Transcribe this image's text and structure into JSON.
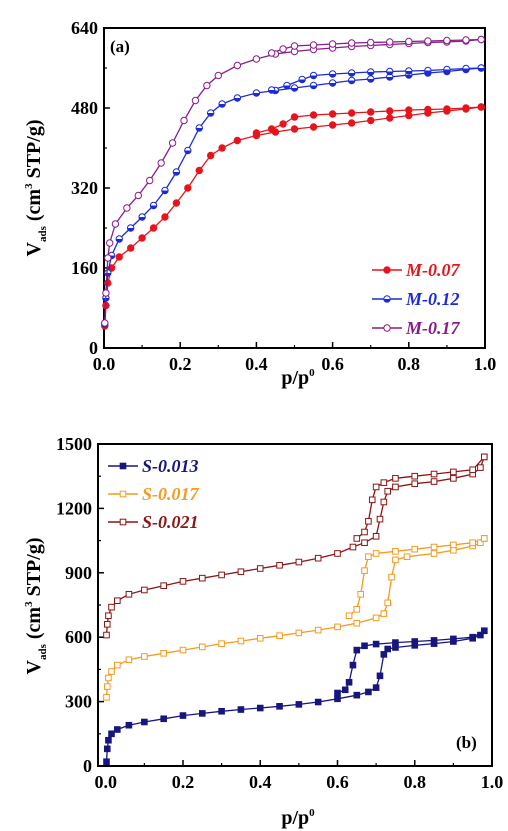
{
  "chart_data": [
    {
      "type": "line",
      "panel_label": "(a)",
      "xlabel": {
        "main": "p/p",
        "sup": "0"
      },
      "ylabel": {
        "v": "V",
        "ads": "ads",
        "pre": " (cm",
        "sup": "3",
        "post": " STP/g)"
      },
      "xlim": [
        0,
        1.0
      ],
      "ylim": [
        0,
        640
      ],
      "xticks": [
        "0.0",
        "0.2",
        "0.4",
        "0.6",
        "0.8",
        "1.0"
      ],
      "yticks": [
        "0",
        "160",
        "320",
        "480",
        "640"
      ],
      "legend_position": "lower-right",
      "series": [
        {
          "name": "M-0.07",
          "color": "#e8141c",
          "marker": "filled-circle",
          "adsorption": [
            [
              0.002,
              44
            ],
            [
              0.005,
              85
            ],
            [
              0.01,
              130
            ],
            [
              0.02,
              160
            ],
            [
              0.04,
              182
            ],
            [
              0.07,
              200
            ],
            [
              0.1,
              220
            ],
            [
              0.13,
              240
            ],
            [
              0.16,
              262
            ],
            [
              0.19,
              290
            ],
            [
              0.22,
              320
            ],
            [
              0.25,
              355
            ],
            [
              0.28,
              385
            ],
            [
              0.31,
              400
            ],
            [
              0.35,
              415
            ],
            [
              0.4,
              425
            ],
            [
              0.45,
              432
            ],
            [
              0.5,
              438
            ],
            [
              0.55,
              442
            ],
            [
              0.6,
              446
            ],
            [
              0.65,
              450
            ],
            [
              0.7,
              455
            ],
            [
              0.75,
              460
            ],
            [
              0.8,
              465
            ],
            [
              0.85,
              470
            ],
            [
              0.9,
              474
            ],
            [
              0.95,
              478
            ],
            [
              0.99,
              482
            ]
          ],
          "desorption": [
            [
              0.99,
              482
            ],
            [
              0.95,
              480
            ],
            [
              0.9,
              478
            ],
            [
              0.85,
              477
            ],
            [
              0.8,
              476
            ],
            [
              0.75,
              474
            ],
            [
              0.7,
              472
            ],
            [
              0.65,
              470
            ],
            [
              0.6,
              468
            ],
            [
              0.55,
              466
            ],
            [
              0.5,
              462
            ],
            [
              0.47,
              448
            ],
            [
              0.44,
              438
            ],
            [
              0.4,
              430
            ]
          ]
        },
        {
          "name": "M-0.12",
          "color": "#1c2bd6",
          "marker": "half-filled-circle",
          "adsorption": [
            [
              0.002,
              48
            ],
            [
              0.005,
              100
            ],
            [
              0.01,
              150
            ],
            [
              0.02,
              185
            ],
            [
              0.04,
              218
            ],
            [
              0.07,
              240
            ],
            [
              0.1,
              262
            ],
            [
              0.13,
              285
            ],
            [
              0.16,
              315
            ],
            [
              0.19,
              352
            ],
            [
              0.22,
              395
            ],
            [
              0.25,
              440
            ],
            [
              0.28,
              470
            ],
            [
              0.31,
              488
            ],
            [
              0.35,
              500
            ],
            [
              0.4,
              510
            ],
            [
              0.45,
              515
            ],
            [
              0.5,
              520
            ],
            [
              0.55,
              525
            ],
            [
              0.6,
              530
            ],
            [
              0.65,
              535
            ],
            [
              0.7,
              538
            ],
            [
              0.75,
              542
            ],
            [
              0.8,
              546
            ],
            [
              0.85,
              550
            ],
            [
              0.9,
              553
            ],
            [
              0.95,
              557
            ],
            [
              0.99,
              560
            ]
          ],
          "desorption": [
            [
              0.99,
              560
            ],
            [
              0.95,
              559
            ],
            [
              0.9,
              557
            ],
            [
              0.85,
              555
            ],
            [
              0.8,
              554
            ],
            [
              0.75,
              553
            ],
            [
              0.7,
              552
            ],
            [
              0.65,
              550
            ],
            [
              0.6,
              548
            ],
            [
              0.55,
              545
            ],
            [
              0.52,
              537
            ],
            [
              0.48,
              525
            ],
            [
              0.44,
              516
            ]
          ]
        },
        {
          "name": "M-0.17",
          "color": "#8b1a8b",
          "marker": "open-circle",
          "adsorption": [
            [
              0.002,
              50
            ],
            [
              0.005,
              110
            ],
            [
              0.01,
              180
            ],
            [
              0.015,
              210
            ],
            [
              0.03,
              248
            ],
            [
              0.06,
              280
            ],
            [
              0.09,
              305
            ],
            [
              0.12,
              335
            ],
            [
              0.15,
              370
            ],
            [
              0.18,
              410
            ],
            [
              0.21,
              455
            ],
            [
              0.24,
              495
            ],
            [
              0.27,
              525
            ],
            [
              0.3,
              545
            ],
            [
              0.35,
              565
            ],
            [
              0.4,
              578
            ],
            [
              0.45,
              588
            ],
            [
              0.5,
              593
            ],
            [
              0.55,
              597
            ],
            [
              0.6,
              600
            ],
            [
              0.65,
              603
            ],
            [
              0.7,
              605
            ],
            [
              0.75,
              607
            ],
            [
              0.8,
              609
            ],
            [
              0.85,
              611
            ],
            [
              0.9,
              612
            ],
            [
              0.95,
              614
            ],
            [
              0.99,
              617
            ]
          ],
          "desorption": [
            [
              0.99,
              617
            ],
            [
              0.95,
              616
            ],
            [
              0.9,
              615
            ],
            [
              0.85,
              614
            ],
            [
              0.8,
              613
            ],
            [
              0.75,
              612
            ],
            [
              0.7,
              611
            ],
            [
              0.65,
              610
            ],
            [
              0.6,
              608
            ],
            [
              0.55,
              606
            ],
            [
              0.5,
              604
            ],
            [
              0.47,
              598
            ],
            [
              0.44,
              590
            ]
          ]
        }
      ]
    },
    {
      "type": "line",
      "panel_label": "(b)",
      "xlabel": {
        "main": "p/p",
        "sup": "0"
      },
      "ylabel": {
        "v": "V",
        "ads": "ads",
        "pre": " (cm",
        "sup": "3",
        "post": " STP/g)"
      },
      "xlim": [
        -0.02,
        1.0
      ],
      "ylim": [
        0,
        1500
      ],
      "xticks": [
        "0.0",
        "0.2",
        "0.4",
        "0.6",
        "0.8",
        "1.0"
      ],
      "xtick_values": [
        0,
        0.2,
        0.4,
        0.6,
        0.8,
        1.0
      ],
      "yticks": [
        "0",
        "300",
        "600",
        "900",
        "1200",
        "1500"
      ],
      "legend_position": "top-left",
      "series": [
        {
          "name": "S-0.013",
          "color": "#16167e",
          "marker": "filled-square",
          "adsorption": [
            [
              0.002,
              20
            ],
            [
              0.004,
              80
            ],
            [
              0.007,
              120
            ],
            [
              0.015,
              150
            ],
            [
              0.03,
              170
            ],
            [
              0.06,
              190
            ],
            [
              0.1,
              205
            ],
            [
              0.15,
              220
            ],
            [
              0.2,
              235
            ],
            [
              0.25,
              245
            ],
            [
              0.3,
              255
            ],
            [
              0.35,
              263
            ],
            [
              0.4,
              270
            ],
            [
              0.45,
              278
            ],
            [
              0.5,
              287
            ],
            [
              0.55,
              298
            ],
            [
              0.6,
              313
            ],
            [
              0.65,
              330
            ],
            [
              0.68,
              345
            ],
            [
              0.7,
              365
            ],
            [
              0.71,
              420
            ],
            [
              0.72,
              520
            ],
            [
              0.73,
              545
            ],
            [
              0.75,
              552
            ],
            [
              0.8,
              562
            ],
            [
              0.85,
              570
            ],
            [
              0.9,
              580
            ],
            [
              0.95,
              595
            ],
            [
              0.97,
              610
            ],
            [
              0.98,
              630
            ]
          ],
          "desorption": [
            [
              0.98,
              630
            ],
            [
              0.95,
              600
            ],
            [
              0.9,
              592
            ],
            [
              0.85,
              585
            ],
            [
              0.8,
              580
            ],
            [
              0.75,
              575
            ],
            [
              0.7,
              568
            ],
            [
              0.67,
              560
            ],
            [
              0.65,
              540
            ],
            [
              0.64,
              470
            ],
            [
              0.63,
              390
            ],
            [
              0.62,
              355
            ],
            [
              0.6,
              340
            ]
          ]
        },
        {
          "name": "S-0.017",
          "color": "#f59a1f",
          "marker": "open-square",
          "adsorption": [
            [
              0.002,
              320
            ],
            [
              0.004,
              370
            ],
            [
              0.007,
              410
            ],
            [
              0.015,
              440
            ],
            [
              0.03,
              470
            ],
            [
              0.06,
              495
            ],
            [
              0.1,
              510
            ],
            [
              0.15,
              525
            ],
            [
              0.2,
              540
            ],
            [
              0.25,
              555
            ],
            [
              0.3,
              570
            ],
            [
              0.35,
              582
            ],
            [
              0.4,
              595
            ],
            [
              0.45,
              607
            ],
            [
              0.5,
              620
            ],
            [
              0.55,
              633
            ],
            [
              0.6,
              648
            ],
            [
              0.65,
              665
            ],
            [
              0.7,
              690
            ],
            [
              0.72,
              710
            ],
            [
              0.73,
              760
            ],
            [
              0.74,
              880
            ],
            [
              0.75,
              960
            ],
            [
              0.78,
              975
            ],
            [
              0.85,
              990
            ],
            [
              0.9,
              1005
            ],
            [
              0.95,
              1025
            ],
            [
              0.97,
              1040
            ],
            [
              0.98,
              1060
            ]
          ],
          "desorption": [
            [
              0.98,
              1060
            ],
            [
              0.95,
              1040
            ],
            [
              0.9,
              1030
            ],
            [
              0.85,
              1020
            ],
            [
              0.8,
              1010
            ],
            [
              0.75,
              1000
            ],
            [
              0.7,
              990
            ],
            [
              0.68,
              975
            ],
            [
              0.67,
              910
            ],
            [
              0.66,
              800
            ],
            [
              0.65,
              730
            ],
            [
              0.63,
              700
            ]
          ]
        },
        {
          "name": "S-0.021",
          "color": "#8c1515",
          "marker": "open-square",
          "adsorption": [
            [
              0.002,
              610
            ],
            [
              0.004,
              660
            ],
            [
              0.007,
              700
            ],
            [
              0.015,
              740
            ],
            [
              0.03,
              770
            ],
            [
              0.06,
              800
            ],
            [
              0.1,
              820
            ],
            [
              0.15,
              840
            ],
            [
              0.2,
              860
            ],
            [
              0.25,
              875
            ],
            [
              0.3,
              890
            ],
            [
              0.35,
              905
            ],
            [
              0.4,
              920
            ],
            [
              0.45,
              935
            ],
            [
              0.5,
              950
            ],
            [
              0.55,
              968
            ],
            [
              0.6,
              990
            ],
            [
              0.64,
              1020
            ],
            [
              0.67,
              1040
            ],
            [
              0.7,
              1070
            ],
            [
              0.71,
              1150
            ],
            [
              0.72,
              1230
            ],
            [
              0.73,
              1280
            ],
            [
              0.75,
              1300
            ],
            [
              0.8,
              1315
            ],
            [
              0.85,
              1325
            ],
            [
              0.9,
              1340
            ],
            [
              0.95,
              1360
            ],
            [
              0.97,
              1390
            ],
            [
              0.98,
              1440
            ]
          ],
          "desorption": [
            [
              0.98,
              1440
            ],
            [
              0.95,
              1380
            ],
            [
              0.9,
              1370
            ],
            [
              0.85,
              1360
            ],
            [
              0.8,
              1350
            ],
            [
              0.75,
              1340
            ],
            [
              0.72,
              1320
            ],
            [
              0.7,
              1300
            ],
            [
              0.69,
              1240
            ],
            [
              0.68,
              1140
            ],
            [
              0.67,
              1090
            ],
            [
              0.65,
              1060
            ]
          ]
        }
      ]
    }
  ]
}
